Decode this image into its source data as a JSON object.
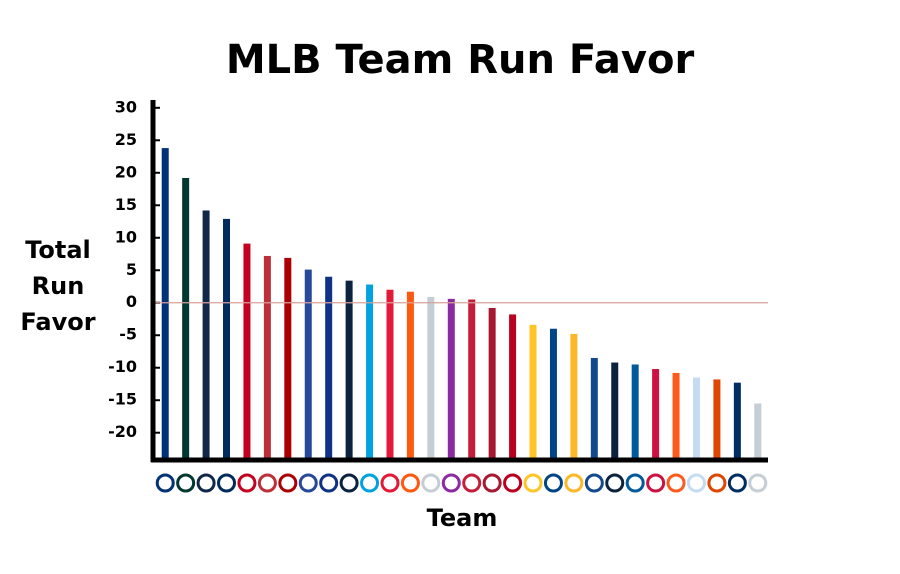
{
  "chart_data": {
    "type": "bar",
    "title": "MLB Team Run Favor",
    "x_label": "Team",
    "y_label": "Total Run Favor",
    "categories": [
      null,
      null,
      null,
      null,
      null,
      null,
      null,
      null,
      null,
      null,
      null,
      null,
      null,
      null,
      null,
      null,
      null,
      null,
      null,
      null,
      null,
      null,
      null,
      null,
      null,
      null,
      null,
      null,
      null,
      null
    ],
    "values": [
      23.8,
      19.2,
      14.2,
      12.9,
      9.1,
      7.2,
      6.9,
      5.1,
      4.0,
      3.4,
      2.8,
      2.0,
      1.7,
      0.9,
      0.6,
      0.5,
      -0.8,
      -1.8,
      -3.4,
      -4.0,
      -4.8,
      -8.5,
      -9.2,
      -9.5,
      -10.2,
      -10.8,
      -11.5,
      -11.8,
      -12.3,
      -15.5
    ],
    "colors": [
      "#003278",
      "#003831",
      "#12284b",
      "#002b5c",
      "#c6011f",
      "#bd3039",
      "#ab0003",
      "#284898",
      "#0e3386",
      "#0c2340",
      "#00a3e0",
      "#e31937",
      "#ff5910",
      "#c4ced4",
      "#8a2ba2",
      "#c41e3a",
      "#a71930",
      "#ba0021",
      "#ffc425",
      "#004687",
      "#fdb827",
      "#134a8e",
      "#0c2340",
      "#005a9c",
      "#ce1141",
      "#fd5a1e",
      "#c5dbf2",
      "#df4601",
      "#002d62",
      "#c4ced4"
    ],
    "ylim": [
      -24.2,
      31.2
    ],
    "yticks": [
      -20,
      -15,
      -10,
      -5,
      0,
      5,
      10,
      15,
      20,
      25,
      30
    ],
    "grid": false,
    "zero_line_color": "#d9a09a"
  }
}
